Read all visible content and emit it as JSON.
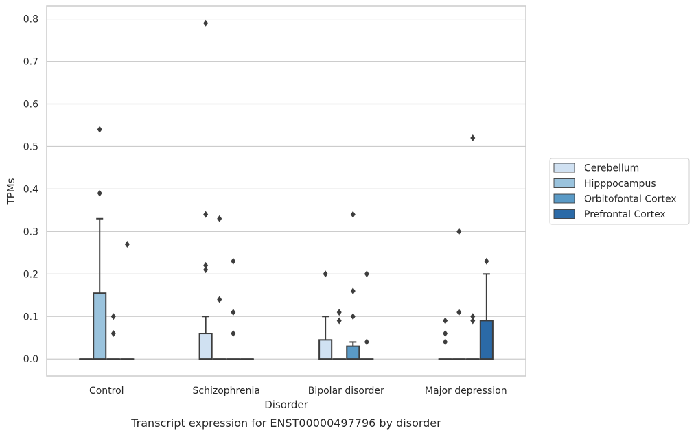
{
  "chart_data": {
    "type": "box",
    "xlabel": "Disorder",
    "ylabel": "TPMs",
    "ylim": [
      -0.04,
      0.83
    ],
    "yticks": [
      "0.0",
      "0.1",
      "0.2",
      "0.3",
      "0.4",
      "0.5",
      "0.6",
      "0.7",
      "0.8"
    ],
    "ytick_values": [
      0,
      0.1,
      0.2,
      0.3,
      0.4,
      0.5,
      0.6,
      0.7,
      0.8
    ],
    "grid": true,
    "legend_position": "right",
    "caption": "Transcript expression for ENST00000497796 by disorder",
    "categories": [
      "Control",
      "Schizophrenia",
      "Bipolar disorder",
      "Major depression"
    ],
    "series": [
      {
        "name": "Cerebellum",
        "color": "#d0e1f2",
        "boxes": [
          {
            "q1": 0,
            "median": 0,
            "q3": 0,
            "whisker_low": 0,
            "whisker_high": 0,
            "outliers": []
          },
          {
            "q1": 0,
            "median": 0,
            "q3": 0.06,
            "whisker_low": 0,
            "whisker_high": 0.1,
            "outliers": [
              0.79,
              0.34,
              0.22,
              0.21
            ]
          },
          {
            "q1": 0,
            "median": 0,
            "q3": 0.045,
            "whisker_low": 0,
            "whisker_high": 0.1,
            "outliers": [
              0.2
            ]
          },
          {
            "q1": 0,
            "median": 0,
            "q3": 0,
            "whisker_low": 0,
            "whisker_high": 0,
            "outliers": [
              0.09,
              0.06,
              0.04
            ]
          }
        ]
      },
      {
        "name": "Hipppocampus",
        "color": "#9ac3dd",
        "boxes": [
          {
            "q1": 0,
            "median": 0,
            "q3": 0.155,
            "whisker_low": 0,
            "whisker_high": 0.33,
            "outliers": [
              0.54,
              0.39
            ]
          },
          {
            "q1": 0,
            "median": 0,
            "q3": 0,
            "whisker_low": 0,
            "whisker_high": 0,
            "outliers": [
              0.33,
              0.14
            ]
          },
          {
            "q1": 0,
            "median": 0,
            "q3": 0,
            "whisker_low": 0,
            "whisker_high": 0,
            "outliers": [
              0.11,
              0.09
            ]
          },
          {
            "q1": 0,
            "median": 0,
            "q3": 0,
            "whisker_low": 0,
            "whisker_high": 0,
            "outliers": [
              0.3,
              0.11
            ]
          }
        ]
      },
      {
        "name": "Orbitofontal Cortex",
        "color": "#5a9ac6",
        "boxes": [
          {
            "q1": 0,
            "median": 0,
            "q3": 0,
            "whisker_low": 0,
            "whisker_high": 0,
            "outliers": [
              0.1,
              0.06
            ]
          },
          {
            "q1": 0,
            "median": 0,
            "q3": 0,
            "whisker_low": 0,
            "whisker_high": 0,
            "outliers": [
              0.23,
              0.11,
              0.06
            ]
          },
          {
            "q1": 0,
            "median": 0,
            "q3": 0.03,
            "whisker_low": 0,
            "whisker_high": 0.04,
            "outliers": [
              0.34,
              0.16,
              0.1
            ]
          },
          {
            "q1": 0,
            "median": 0,
            "q3": 0,
            "whisker_low": 0,
            "whisker_high": 0,
            "outliers": [
              0.52,
              0.1,
              0.09
            ]
          }
        ]
      },
      {
        "name": "Prefrontal Cortex",
        "color": "#2b6aa7",
        "boxes": [
          {
            "q1": 0,
            "median": 0,
            "q3": 0,
            "whisker_low": 0,
            "whisker_high": 0,
            "outliers": [
              0.27
            ]
          },
          {
            "q1": 0,
            "median": 0,
            "q3": 0,
            "whisker_low": 0,
            "whisker_high": 0,
            "outliers": []
          },
          {
            "q1": 0,
            "median": 0,
            "q3": 0,
            "whisker_low": 0,
            "whisker_high": 0,
            "outliers": [
              0.2,
              0.04
            ]
          },
          {
            "q1": 0,
            "median": 0,
            "q3": 0.09,
            "whisker_low": 0,
            "whisker_high": 0.2,
            "outliers": [
              0.23
            ]
          }
        ]
      }
    ]
  }
}
